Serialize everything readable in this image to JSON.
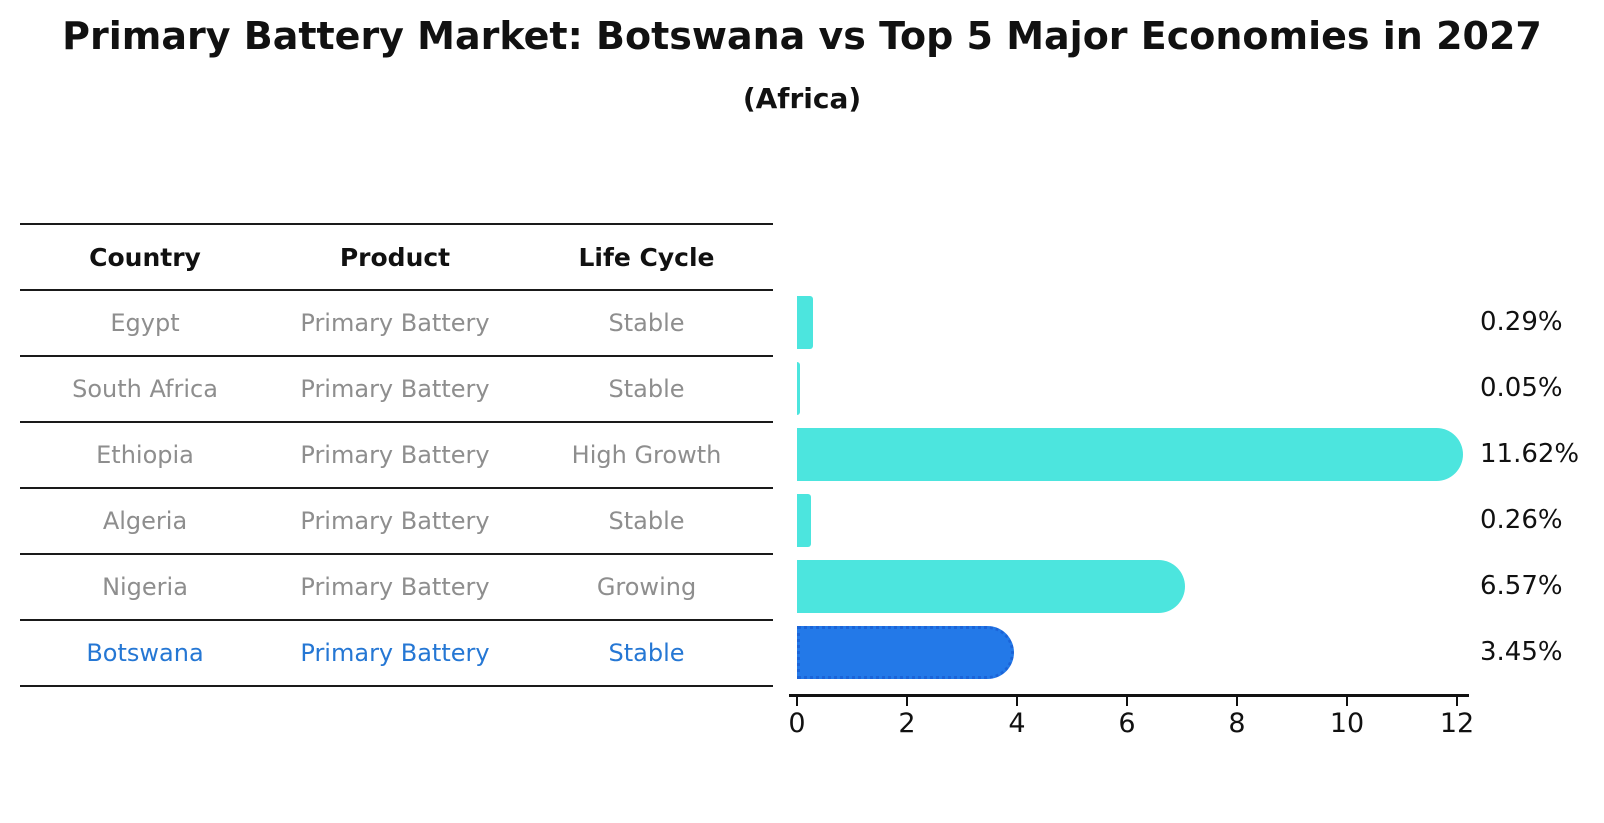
{
  "title": "Primary Battery Market: Botswana vs Top 5 Major Economies in 2027",
  "subtitle": "(Africa)",
  "colors": {
    "bar_default": "#4ce5de",
    "bar_highlight": "#2379e8",
    "bar_highlight_border": "#1b64d8",
    "table_text": "#8e8e8e",
    "highlight_text": "#2577d4",
    "heading_text": "#111111"
  },
  "table": {
    "headers": [
      "Country",
      "Product",
      "Life Cycle"
    ],
    "rows": [
      {
        "country": "Egypt",
        "product": "Primary Battery",
        "life_cycle": "Stable",
        "highlighted": false
      },
      {
        "country": "South Africa",
        "product": "Primary Battery",
        "life_cycle": "Stable",
        "highlighted": false
      },
      {
        "country": "Ethiopia",
        "product": "Primary Battery",
        "life_cycle": "High Growth",
        "highlighted": false
      },
      {
        "country": "Algeria",
        "product": "Primary Battery",
        "life_cycle": "Stable",
        "highlighted": false
      },
      {
        "country": "Nigeria",
        "product": "Primary Battery",
        "life_cycle": "Growing",
        "highlighted": false
      },
      {
        "country": "Botswana",
        "product": "Primary Battery",
        "life_cycle": "Stable",
        "highlighted": true
      }
    ]
  },
  "chart_data": {
    "type": "bar",
    "orientation": "horizontal",
    "title": "Primary Battery Market: Botswana vs Top 5 Major Economies in 2027",
    "subtitle": "(Africa)",
    "categories": [
      "Egypt",
      "South Africa",
      "Ethiopia",
      "Algeria",
      "Nigeria",
      "Botswana"
    ],
    "values": [
      0.29,
      0.05,
      11.62,
      0.26,
      6.57,
      3.45
    ],
    "value_labels": [
      "0.29%",
      "0.05%",
      "11.62%",
      "0.26%",
      "6.57%",
      "3.45%"
    ],
    "xlim": [
      0,
      12
    ],
    "x_ticks": [
      0,
      2,
      4,
      6,
      8,
      10,
      12
    ],
    "grid": false,
    "legend": false,
    "bar_color": "#4ce5de",
    "highlight_index": 5,
    "highlight_color": "#2379e8",
    "highlight_border": "#1b64d8"
  }
}
